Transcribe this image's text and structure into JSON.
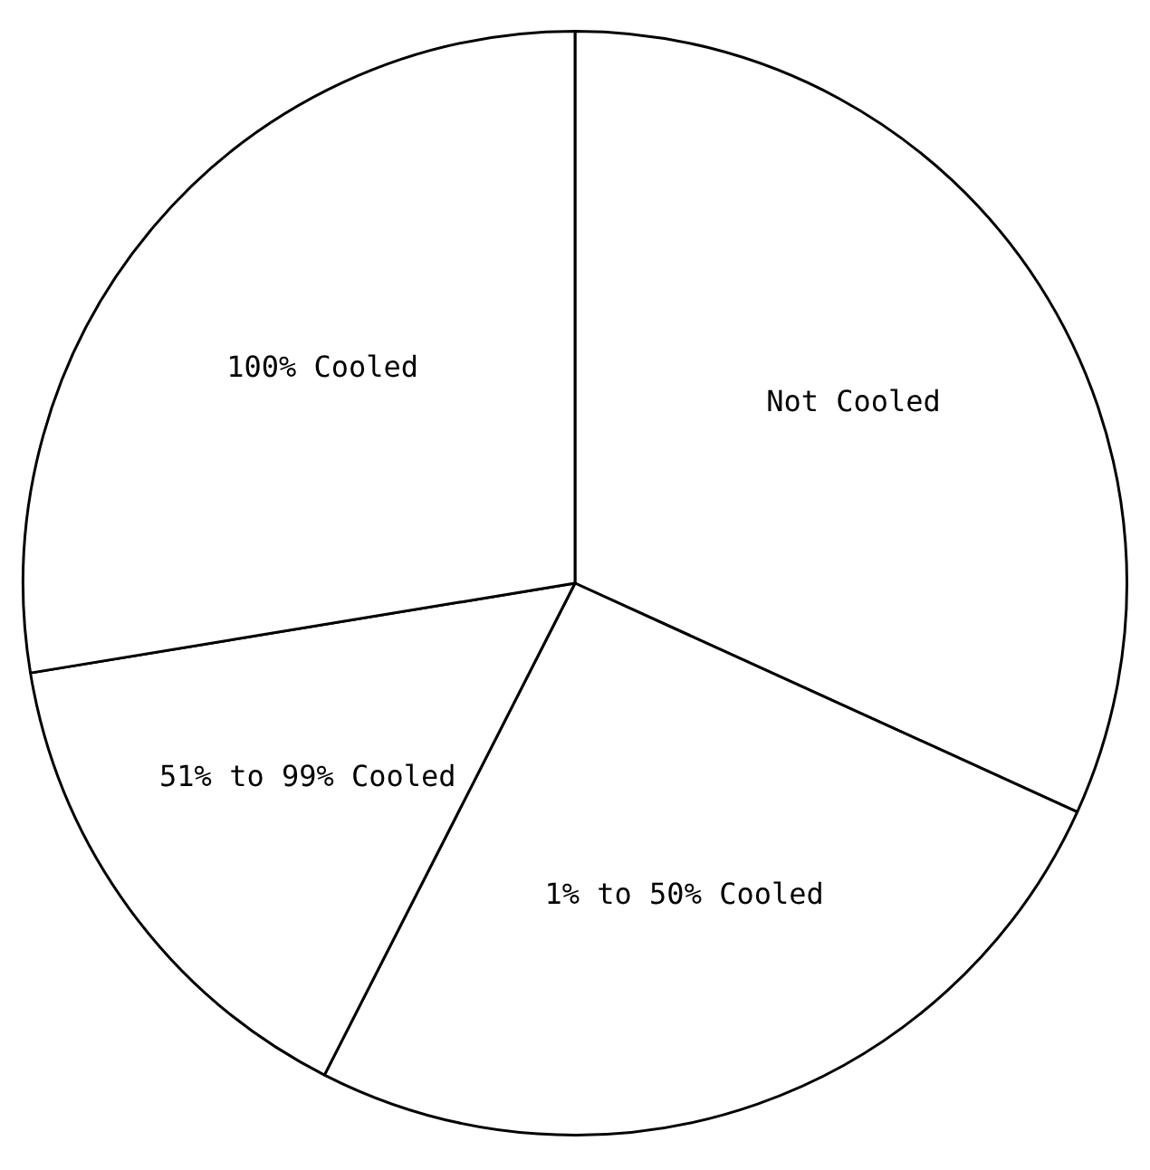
{
  "chart_data": {
    "type": "pie",
    "categories": [
      "Not Cooled",
      "1% to 50% Cooled",
      "51% to 99% Cooled",
      "100% Cooled"
    ],
    "values": [
      31.8,
      25.7,
      14.9,
      27.6
    ],
    "colors": [
      "#ffffff",
      "#ffffff",
      "#ffffff",
      "#ffffff"
    ],
    "legend": false
  }
}
